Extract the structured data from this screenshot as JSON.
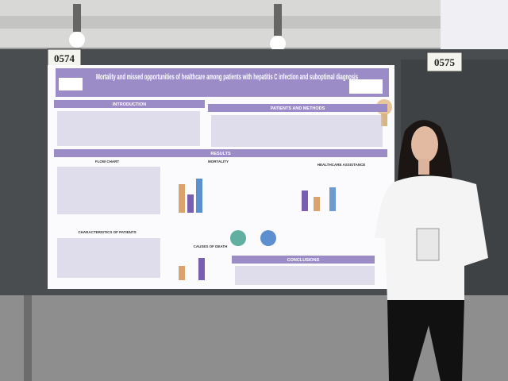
{
  "booths": {
    "left_number": "0574",
    "right_number": "0575"
  },
  "poster": {
    "title": "Mortality and missed opportunities of healthcare among patients with hepatitis C infection and suboptimal diagnosis",
    "sections": [
      "INTRODUCTION",
      "PATIENTS AND METHODS",
      "RESULTS",
      "FLOW CHART",
      "MORTALITY",
      "HEALTHCARE ASSISTANCE",
      "CHARACTERISTICS OF PATIENTS",
      "CAUSES OF DEATH",
      "CONCLUSIONS"
    ]
  }
}
